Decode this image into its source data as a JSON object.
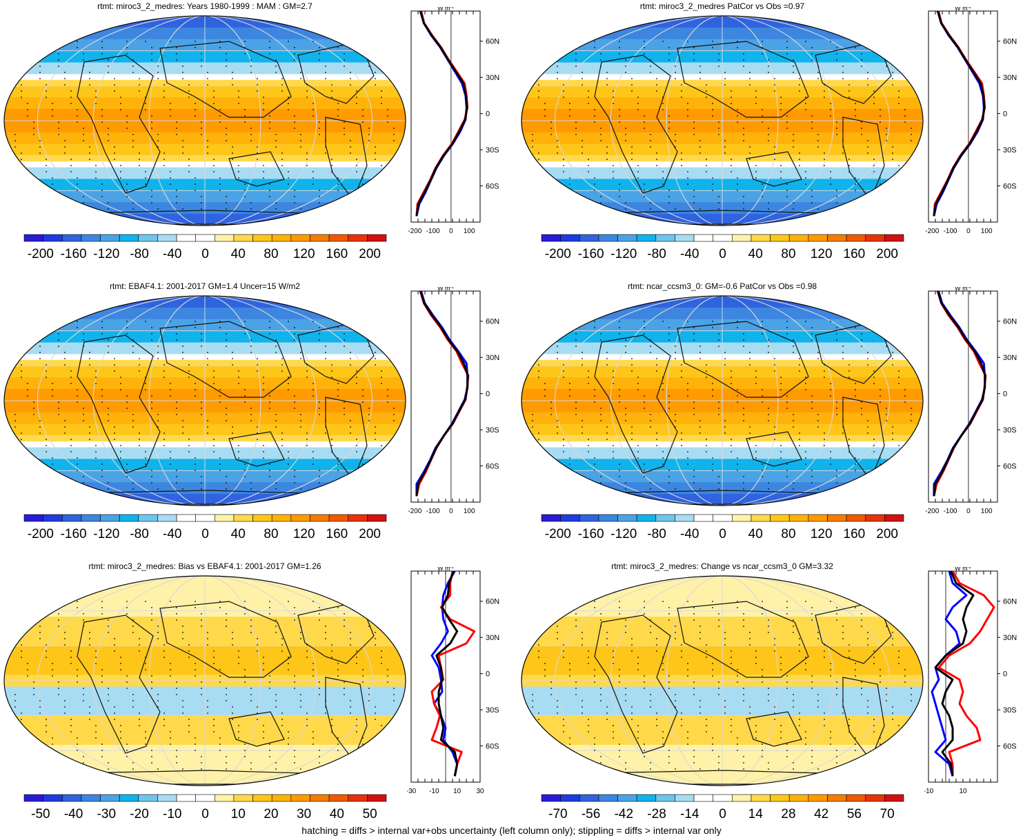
{
  "footer": "hatching = diffs > internal var+obs uncertainty (left column only); stippling = diffs > internal var only",
  "profile_unit": "W m",
  "profile_unit_exp": "-2",
  "lat_labels": [
    "60N",
    "30N",
    "0",
    "30S",
    "60S"
  ],
  "palette": [
    "#2a1bd6",
    "#1e3be0",
    "#2f63df",
    "#3d86e0",
    "#4ba3e6",
    "#10b3ec",
    "#6ec6ee",
    "#a8dcf2",
    "#ffffff",
    "#ffffff",
    "#fff2a8",
    "#ffd94a",
    "#ffc61a",
    "#ffb20a",
    "#ff9a00",
    "#f57c00",
    "#ef5a00",
    "#e8320a",
    "#d40f0f"
  ],
  "line_colors": {
    "model": "#0000ff",
    "obs": "#ff0000",
    "ref": "#000000"
  },
  "chart_data": [
    {
      "type": "heatmap",
      "title": "rtmt: miroc3_2_medres: Years 1980-1999 : MAM : GM=2.7",
      "colorbar_ticks": [
        "-200",
        "-160",
        "-120",
        "-80",
        "-40",
        "0",
        "40",
        "80",
        "120",
        "160",
        "200"
      ],
      "profile_xticks": [
        "-200",
        "-100",
        "0",
        "100"
      ],
      "profile_xlim": [
        -220,
        160
      ],
      "lat": [
        85,
        75,
        65,
        55,
        45,
        35,
        25,
        15,
        5,
        -5,
        -15,
        -25,
        -35,
        -45,
        -55,
        -65,
        -75,
        -85
      ],
      "series": [
        {
          "values": [
            -170,
            -150,
            -110,
            -60,
            -20,
            20,
            60,
            80,
            85,
            80,
            50,
            10,
            -40,
            -80,
            -110,
            -140,
            -175,
            -190
          ]
        },
        {
          "values": [
            -165,
            -148,
            -105,
            -55,
            -15,
            30,
            75,
            85,
            90,
            75,
            40,
            5,
            -45,
            -85,
            -115,
            -150,
            -185,
            -190
          ]
        },
        {
          "values": [
            -168,
            -150,
            -108,
            -58,
            -18,
            25,
            68,
            82,
            88,
            78,
            45,
            8,
            -42,
            -82,
            -112,
            -145,
            -180,
            -190
          ]
        }
      ]
    },
    {
      "type": "heatmap",
      "title": "rtmt: miroc3_2_medres PatCor vs Obs =0.97",
      "colorbar_ticks": [
        "-200",
        "-160",
        "-120",
        "-80",
        "-40",
        "0",
        "40",
        "80",
        "120",
        "160",
        "200"
      ],
      "profile_xticks": [
        "-200",
        "-100",
        "0",
        "100"
      ],
      "profile_xlim": [
        -220,
        160
      ],
      "lat": [
        85,
        75,
        65,
        55,
        45,
        35,
        25,
        15,
        5,
        -5,
        -15,
        -25,
        -35,
        -45,
        -55,
        -65,
        -75,
        -85
      ],
      "series": [
        {
          "values": [
            -170,
            -150,
            -110,
            -60,
            -20,
            20,
            60,
            80,
            85,
            80,
            50,
            10,
            -40,
            -80,
            -110,
            -140,
            -175,
            -190
          ]
        },
        {
          "values": [
            -165,
            -148,
            -105,
            -55,
            -15,
            30,
            75,
            85,
            90,
            75,
            40,
            5,
            -45,
            -85,
            -115,
            -150,
            -185,
            -190
          ]
        },
        {
          "values": [
            -168,
            -150,
            -108,
            -58,
            -18,
            25,
            68,
            82,
            88,
            78,
            45,
            8,
            -42,
            -82,
            -112,
            -145,
            -180,
            -190
          ]
        }
      ]
    },
    {
      "type": "heatmap",
      "title": "rtmt: EBAF4.1: 2001-2017 GM=1.4 Uncer=15 W/m2",
      "colorbar_ticks": [
        "-200",
        "-160",
        "-120",
        "-80",
        "-40",
        "0",
        "40",
        "80",
        "120",
        "160",
        "200"
      ],
      "profile_xticks": [
        "-200",
        "-100",
        "0",
        "100"
      ],
      "profile_xlim": [
        -220,
        160
      ],
      "lat": [
        85,
        75,
        65,
        55,
        45,
        35,
        25,
        15,
        5,
        -5,
        -15,
        -25,
        -35,
        -45,
        -55,
        -65,
        -75,
        -85
      ],
      "series": [
        {
          "values": [
            -165,
            -145,
            -100,
            -50,
            -10,
            40,
            85,
            90,
            90,
            75,
            40,
            5,
            -40,
            -85,
            -115,
            -150,
            -190,
            -190
          ]
        },
        {
          "values": [
            -170,
            -150,
            -110,
            -60,
            -20,
            30,
            60,
            95,
            88,
            80,
            45,
            10,
            -40,
            -80,
            -110,
            -140,
            -175,
            -190
          ]
        },
        {
          "values": [
            -168,
            -148,
            -105,
            -55,
            -15,
            35,
            70,
            92,
            90,
            78,
            42,
            8,
            -40,
            -82,
            -112,
            -145,
            -182,
            -190
          ]
        }
      ]
    },
    {
      "type": "heatmap",
      "title": "rtmt: ncar_ccsm3_0: GM=-0.6 PatCor vs Obs =0.98",
      "colorbar_ticks": [
        "-200",
        "-160",
        "-120",
        "-80",
        "-40",
        "0",
        "40",
        "80",
        "120",
        "160",
        "200"
      ],
      "profile_xticks": [
        "-200",
        "-100",
        "0",
        "100"
      ],
      "profile_xlim": [
        -220,
        160
      ],
      "lat": [
        85,
        75,
        65,
        55,
        45,
        35,
        25,
        15,
        5,
        -5,
        -15,
        -25,
        -35,
        -45,
        -55,
        -65,
        -75,
        -85
      ],
      "series": [
        {
          "values": [
            -165,
            -145,
            -100,
            -50,
            -10,
            40,
            85,
            90,
            90,
            75,
            40,
            5,
            -40,
            -85,
            -115,
            -150,
            -190,
            -190
          ]
        },
        {
          "values": [
            -170,
            -150,
            -110,
            -60,
            -20,
            30,
            60,
            95,
            88,
            80,
            45,
            10,
            -40,
            -80,
            -110,
            -140,
            -175,
            -190
          ]
        },
        {
          "values": [
            -168,
            -148,
            -105,
            -55,
            -15,
            35,
            70,
            92,
            90,
            78,
            42,
            8,
            -40,
            -82,
            -112,
            -145,
            -182,
            -190
          ]
        }
      ]
    },
    {
      "type": "heatmap",
      "title": "rtmt: miroc3_2_medres: Bias vs EBAF4.1: 2001-2017 GM=1.26",
      "colorbar_ticks": [
        "-50",
        "-40",
        "-30",
        "-20",
        "-10",
        "0",
        "10",
        "20",
        "30",
        "40",
        "50"
      ],
      "profile_xticks": [
        "-30",
        "-10",
        "10",
        "30"
      ],
      "profile_xlim": [
        -30,
        30
      ],
      "lat": [
        85,
        75,
        65,
        55,
        45,
        35,
        25,
        15,
        5,
        -5,
        -15,
        -25,
        -35,
        -45,
        -55,
        -65,
        -75,
        -85
      ],
      "series": [
        {
          "values": [
            8,
            2,
            -2,
            -3,
            -2,
            2,
            -4,
            -12,
            -6,
            -4,
            -3,
            -10,
            -4,
            0,
            -2,
            6,
            10,
            8
          ]
        },
        {
          "values": [
            6,
            4,
            4,
            -4,
            4,
            25,
            18,
            -6,
            -4,
            -2,
            -12,
            -10,
            -5,
            -8,
            -12,
            14,
            10,
            8
          ]
        },
        {
          "values": [
            7,
            3,
            2,
            -3,
            3,
            10,
            4,
            -8,
            -4,
            -3,
            -6,
            -6,
            -4,
            -2,
            -4,
            8,
            10,
            8
          ]
        }
      ]
    },
    {
      "type": "heatmap",
      "title": "rtmt: miroc3_2_medres: Change vs ncar_ccsm3_0 GM=3.32",
      "colorbar_ticks": [
        "-70",
        "-56",
        "-42",
        "-28",
        "-14",
        "0",
        "14",
        "28",
        "42",
        "56",
        "70"
      ],
      "profile_xticks": [
        "-10",
        "10"
      ],
      "profile_xlim": [
        -10,
        30
      ],
      "lat": [
        85,
        75,
        65,
        55,
        45,
        35,
        25,
        15,
        5,
        -5,
        -15,
        -25,
        -35,
        -45,
        -55,
        -65,
        -75,
        -85
      ],
      "series": [
        {
          "values": [
            2,
            4,
            12,
            4,
            0,
            6,
            8,
            0,
            -6,
            -4,
            -8,
            -6,
            -4,
            -2,
            0,
            -6,
            2,
            4
          ]
        },
        {
          "values": [
            4,
            8,
            22,
            28,
            24,
            20,
            14,
            2,
            -4,
            8,
            10,
            8,
            12,
            18,
            20,
            2,
            4,
            4
          ]
        },
        {
          "values": [
            3,
            6,
            16,
            12,
            10,
            12,
            10,
            0,
            -6,
            4,
            0,
            -2,
            2,
            4,
            4,
            -2,
            3,
            4
          ]
        }
      ]
    }
  ]
}
